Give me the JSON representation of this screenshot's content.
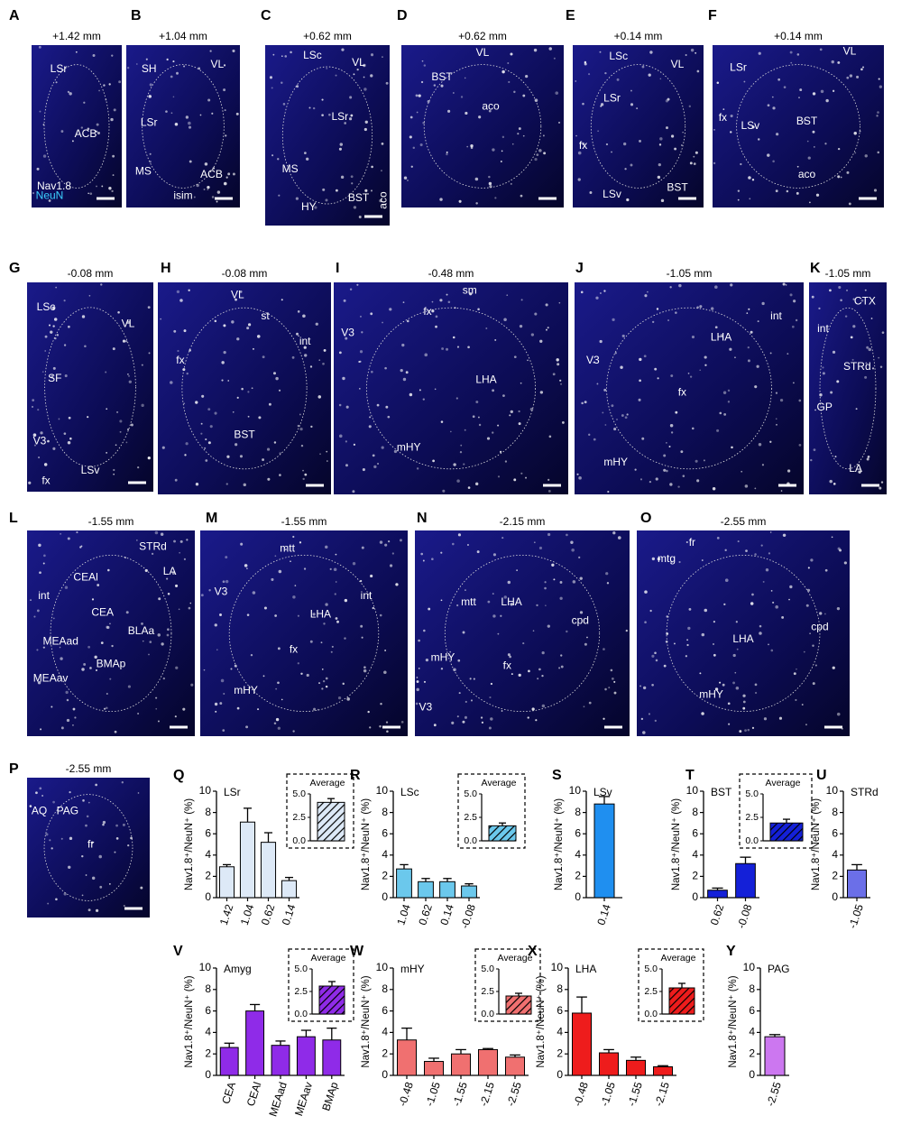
{
  "panels": [
    {
      "letter": "A",
      "coordinate": "+1.42 mm",
      "labels": [
        "LSr",
        "ACB",
        "Nav1.8",
        "NeuN"
      ]
    },
    {
      "letter": "B",
      "coordinate": "+1.04 mm",
      "labels": [
        "SH",
        "VL",
        "LSr",
        "MS",
        "ACB",
        "isim"
      ]
    },
    {
      "letter": "C",
      "coordinate": "+0.62 mm",
      "labels": [
        "LSc",
        "VL",
        "LSr",
        "MS",
        "BST",
        "HY",
        "aco"
      ]
    },
    {
      "letter": "D",
      "coordinate": "+0.62 mm",
      "labels": [
        "VL",
        "BST",
        "aco"
      ]
    },
    {
      "letter": "E",
      "coordinate": "+0.14 mm",
      "labels": [
        "LSc",
        "VL",
        "LSr",
        "fx",
        "LSv",
        "BST"
      ]
    },
    {
      "letter": "F",
      "coordinate": "+0.14 mm",
      "labels": [
        "VL",
        "LSr",
        "fx",
        "LSv",
        "BST",
        "aco"
      ]
    },
    {
      "letter": "G",
      "coordinate": "-0.08 mm",
      "labels": [
        "LSc",
        "VL",
        "SF",
        "V3",
        "LSv",
        "fx"
      ]
    },
    {
      "letter": "H",
      "coordinate": "-0.08 mm",
      "labels": [
        "VL",
        "st",
        "fx",
        "int",
        "BST"
      ]
    },
    {
      "letter": "I",
      "coordinate": "-0.48 mm",
      "labels": [
        "sm",
        "fx",
        "V3",
        "LHA",
        "mHY"
      ]
    },
    {
      "letter": "J",
      "coordinate": "-1.05 mm",
      "labels": [
        "int",
        "LHA",
        "V3",
        "fx",
        "mHY"
      ]
    },
    {
      "letter": "K",
      "coordinate": "-1.05 mm",
      "labels": [
        "CTX",
        "int",
        "STRd",
        "GP",
        "LA"
      ]
    },
    {
      "letter": "L",
      "coordinate": "-1.55 mm",
      "labels": [
        "STRd",
        "LA",
        "CEAl",
        "int",
        "CEA",
        "BLAa",
        "MEAad",
        "BMAp",
        "MEAav"
      ]
    },
    {
      "letter": "M",
      "coordinate": "-1.55 mm",
      "labels": [
        "mtt",
        "int",
        "V3",
        "LHA",
        "fx",
        "mHY"
      ]
    },
    {
      "letter": "N",
      "coordinate": "-2.15 mm",
      "labels": [
        "mtt",
        "LHA",
        "cpd",
        "mHY",
        "fx",
        "V3"
      ]
    },
    {
      "letter": "O",
      "coordinate": "-2.55 mm",
      "labels": [
        "fr",
        "mtg",
        "LHA",
        "cpd",
        "mHY"
      ]
    },
    {
      "letter": "P",
      "coordinate": "-2.55 mm",
      "labels": [
        "AQ",
        "PAG",
        "fr"
      ]
    }
  ],
  "chart_data": [
    {
      "type": "bar",
      "letter": "Q",
      "title": "LSr",
      "ylabel": "Nav1.8⁺/NeuN⁺ (%)",
      "categories": [
        "1.42",
        "1.04",
        "0.62",
        "0.14"
      ],
      "values": [
        2.9,
        7.1,
        5.2,
        1.6
      ],
      "errors": [
        0.2,
        1.3,
        0.9,
        0.3
      ],
      "color": "#dde9f7",
      "ylim": [
        0,
        10
      ],
      "yticks": [
        0,
        2,
        4,
        6,
        8,
        10
      ],
      "inset": {
        "title": "Average",
        "value": 4.1,
        "error": 0.4,
        "ylim": [
          0,
          5
        ],
        "yticks": [
          {
            "value": 0,
            "label": "0.0"
          },
          2.5,
          {
            "value": 5,
            "label": "5.0"
          }
        ]
      }
    },
    {
      "type": "bar",
      "letter": "R",
      "title": "LSc",
      "ylabel": "Nav1.8⁺/NeuN⁺ (%)",
      "categories": [
        "1.04",
        "0.62",
        "0.14",
        "-0.08"
      ],
      "values": [
        2.7,
        1.5,
        1.5,
        1.1
      ],
      "errors": [
        0.4,
        0.3,
        0.3,
        0.2
      ],
      "color": "#6bc8ec",
      "ylim": [
        0,
        10
      ],
      "yticks": [
        0,
        2,
        4,
        6,
        8,
        10
      ],
      "inset": {
        "title": "Average",
        "value": 1.6,
        "error": 0.3,
        "ylim": [
          0,
          5
        ],
        "yticks": [
          {
            "value": 0,
            "label": "0.0"
          },
          2.5,
          {
            "value": 5,
            "label": "5.0"
          }
        ]
      }
    },
    {
      "type": "bar",
      "letter": "S",
      "title": "LSv",
      "ylabel": "Nav1.8⁺/NeuN⁺ (%)",
      "categories": [
        "0.14"
      ],
      "values": [
        8.8
      ],
      "errors": [
        0.7
      ],
      "color": "#1f8ff0",
      "ylim": [
        0,
        10
      ],
      "yticks": [
        0,
        2,
        4,
        6,
        8,
        10
      ]
    },
    {
      "type": "bar",
      "letter": "T",
      "title": "BST",
      "ylabel": "Nav1.8⁺/NeuN⁺ (%)",
      "categories": [
        "0.62",
        "-0.08"
      ],
      "values": [
        0.7,
        3.2
      ],
      "errors": [
        0.2,
        0.6
      ],
      "color": "#1420d8",
      "ylim": [
        0,
        10
      ],
      "yticks": [
        0,
        2,
        4,
        6,
        8,
        10
      ],
      "inset": {
        "title": "Average",
        "value": 1.9,
        "error": 0.4,
        "ylim": [
          0,
          5
        ],
        "yticks": [
          {
            "value": 0,
            "label": "0.0"
          },
          2.5,
          {
            "value": 5,
            "label": "5.0"
          }
        ]
      }
    },
    {
      "type": "bar",
      "letter": "U",
      "title": "STRd",
      "ylabel": "Nav1.8⁺/NeuN⁺ (%)",
      "categories": [
        "-1.05"
      ],
      "values": [
        2.6
      ],
      "errors": [
        0.5
      ],
      "color": "#6b6fe8",
      "ylim": [
        0,
        10
      ],
      "yticks": [
        0,
        2,
        4,
        6,
        8,
        10
      ]
    },
    {
      "type": "bar",
      "letter": "V",
      "title": "Amyg",
      "ylabel": "Nav1.8⁺/NeuN⁺ (%)",
      "categories": [
        "CEA",
        "CEAl",
        "MEAad",
        "MEAav",
        "BMAp"
      ],
      "values": [
        2.6,
        6.0,
        2.8,
        3.6,
        3.3
      ],
      "errors": [
        0.4,
        0.6,
        0.4,
        0.6,
        1.1
      ],
      "color": "#8f2be8",
      "ylim": [
        0,
        10
      ],
      "yticks": [
        0,
        2,
        4,
        6,
        8,
        10
      ],
      "inset": {
        "title": "Average",
        "value": 3.1,
        "error": 0.5,
        "ylim": [
          0,
          5
        ],
        "yticks": [
          {
            "value": 0,
            "label": "0.0"
          },
          2.5,
          {
            "value": 5,
            "label": "5.0"
          }
        ]
      }
    },
    {
      "type": "bar",
      "letter": "W",
      "title": "mHY",
      "ylabel": "Nav1.8⁺/NeuN⁺ (%)",
      "categories": [
        "-0.48",
        "-1.05",
        "-1.55",
        "-2.15",
        "-2.55"
      ],
      "values": [
        3.3,
        1.3,
        2.0,
        2.4,
        1.7
      ],
      "errors": [
        1.1,
        0.3,
        0.4,
        0.1,
        0.2
      ],
      "color": "#f07070",
      "ylim": [
        0,
        10
      ],
      "yticks": [
        0,
        2,
        4,
        6,
        8,
        10
      ],
      "inset": {
        "title": "Average",
        "value": 2.0,
        "error": 0.3,
        "ylim": [
          0,
          5
        ],
        "yticks": [
          {
            "value": 0,
            "label": "0.0"
          },
          2.5,
          {
            "value": 5,
            "label": "5.0"
          }
        ]
      }
    },
    {
      "type": "bar",
      "letter": "X",
      "title": "LHA",
      "ylabel": "Nav1.8⁺/NeuN⁺ (%)",
      "categories": [
        "-0.48",
        "-1.05",
        "-1.55",
        "-2.15"
      ],
      "values": [
        5.8,
        2.1,
        1.4,
        0.8
      ],
      "errors": [
        1.5,
        0.3,
        0.3,
        0.1
      ],
      "color": "#ee1c1c",
      "ylim": [
        0,
        10
      ],
      "yticks": [
        0,
        2,
        4,
        6,
        8,
        10
      ],
      "inset": {
        "title": "Average",
        "value": 2.9,
        "error": 0.5,
        "ylim": [
          0,
          5
        ],
        "yticks": [
          {
            "value": 0,
            "label": "0.0"
          },
          2.5,
          {
            "value": 5,
            "label": "5.0"
          }
        ]
      }
    },
    {
      "type": "bar",
      "letter": "Y",
      "title": "PAG",
      "ylabel": "Nav1.8⁺/NeuN⁺ (%)",
      "categories": [
        "-2.55"
      ],
      "values": [
        3.6
      ],
      "errors": [
        0.2
      ],
      "color": "#cc77f0",
      "ylim": [
        0,
        10
      ],
      "yticks": [
        0,
        2,
        4,
        6,
        8,
        10
      ]
    }
  ]
}
